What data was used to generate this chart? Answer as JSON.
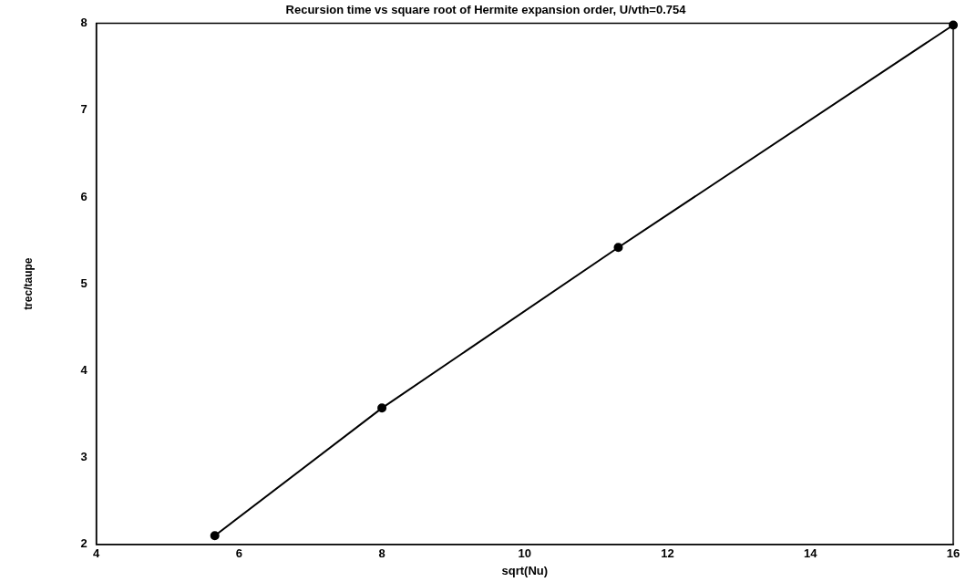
{
  "chart_data": {
    "type": "line",
    "title": "Recursion time vs square root of Hermite expansion order, U/vth=0.754",
    "xlabel": "sqrt(Nu)",
    "ylabel": "trec/taupe",
    "x": [
      5.66,
      8,
      11.31,
      16
    ],
    "series": [
      {
        "color": "#000000",
        "values": [
          2.1,
          3.57,
          5.42,
          7.98
        ]
      }
    ],
    "xlim": [
      4,
      16
    ],
    "xticks": [
      4,
      6,
      8,
      10,
      12,
      14,
      16
    ],
    "ylim": [
      2,
      8
    ],
    "yticks": [
      2,
      3,
      4,
      5,
      6,
      7,
      8
    ],
    "grid": false,
    "legend": false,
    "marker": "circle",
    "line_style": "solid"
  }
}
